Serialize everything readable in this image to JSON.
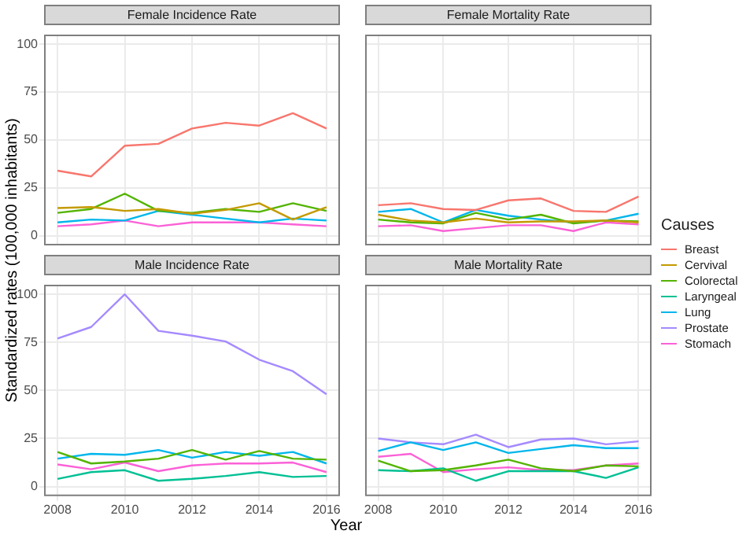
{
  "chart_data": [
    {
      "type": "line",
      "title": "Female Incidence Rate",
      "ylabel": "Standardized rates (100,000 inhabitants)",
      "legend": "right",
      "legend_title": "Causes",
      "x": [
        2008,
        2009,
        2010,
        2011,
        2012,
        2013,
        2014,
        2015,
        2016
      ],
      "xlim": [
        2007.6,
        2016.4
      ],
      "xticks": [
        2008,
        2010,
        2012,
        2014,
        2016
      ],
      "ylim": [
        -5,
        105
      ],
      "yticks": [
        0,
        25,
        50,
        75,
        100
      ],
      "grid": true,
      "tick_labels": "y",
      "series": [
        {
          "name": "Breast",
          "color": "#f8766d",
          "values": [
            34,
            31,
            47,
            48,
            56,
            59,
            57.5,
            64,
            56
          ]
        },
        {
          "name": "Cervival",
          "color": "#c49a00",
          "values": [
            14.5,
            15,
            13,
            14,
            11.5,
            13.5,
            17,
            8.5,
            15
          ]
        },
        {
          "name": "Colorectal",
          "color": "#53b400",
          "values": [
            12,
            14,
            22,
            13,
            12,
            14,
            12.5,
            17,
            13
          ]
        },
        {
          "name": "Laryngeal",
          "color": "#00c094",
          "values": [
            null,
            null,
            null,
            null,
            null,
            null,
            null,
            null,
            null
          ]
        },
        {
          "name": "Lung",
          "color": "#00b6eb",
          "values": [
            7,
            8.5,
            8,
            13,
            11,
            9,
            7,
            9,
            8
          ]
        },
        {
          "name": "Prostate",
          "color": "#a58aff",
          "values": [
            null,
            null,
            null,
            null,
            null,
            null,
            null,
            null,
            null
          ]
        },
        {
          "name": "Stomach",
          "color": "#fb61d7",
          "values": [
            5,
            6,
            8,
            5,
            7,
            7,
            7,
            6,
            5
          ]
        }
      ]
    },
    {
      "type": "line",
      "title": "Female Mortality Rate",
      "x": [
        2008,
        2009,
        2010,
        2011,
        2012,
        2013,
        2014,
        2015,
        2016
      ],
      "xlim": [
        2007.6,
        2016.4
      ],
      "xticks": [
        2008,
        2010,
        2012,
        2014,
        2016
      ],
      "ylim": [
        -5,
        105
      ],
      "yticks": [
        0,
        25,
        50,
        75,
        100
      ],
      "grid": true,
      "tick_labels": false,
      "series": [
        {
          "color": "#f8766d",
          "values": [
            16,
            17,
            14,
            13.5,
            18.5,
            19.5,
            13,
            12.5,
            20.5
          ]
        },
        {
          "color": "#c49a00",
          "values": [
            11,
            8,
            7,
            9,
            7,
            7.5,
            7.5,
            8,
            7
          ]
        },
        {
          "color": "#53b400",
          "values": [
            8.5,
            7,
            6.5,
            12,
            8.5,
            11,
            6.5,
            8,
            7.5
          ]
        },
        {
          "color": "#00b6eb",
          "values": [
            12.5,
            14,
            7,
            13.5,
            10.5,
            8.5,
            7,
            8,
            11.5
          ]
        },
        {
          "color": "#fb61d7",
          "values": [
            5,
            5.5,
            2.5,
            4,
            5.5,
            5.5,
            2.5,
            7,
            6
          ]
        }
      ]
    },
    {
      "type": "line",
      "title": "Male Incidence Rate",
      "xlabel": "Year",
      "x": [
        2008,
        2009,
        2010,
        2011,
        2012,
        2013,
        2014,
        2015,
        2016
      ],
      "xlim": [
        2007.6,
        2016.4
      ],
      "xticks": [
        2008,
        2010,
        2012,
        2014,
        2016
      ],
      "ylim": [
        -5,
        105
      ],
      "yticks": [
        0,
        25,
        50,
        75,
        100
      ],
      "grid": true,
      "series": [
        {
          "color": "#53b400",
          "values": [
            18,
            12,
            13,
            14.5,
            19,
            14,
            18.5,
            14.5,
            14
          ]
        },
        {
          "color": "#00c094",
          "values": [
            4,
            7.5,
            8.5,
            3,
            4,
            5.5,
            7.5,
            5,
            5.5
          ]
        },
        {
          "color": "#00b6eb",
          "values": [
            14.5,
            17,
            16.5,
            19,
            15,
            18,
            16,
            18,
            12
          ]
        },
        {
          "color": "#a58aff",
          "values": [
            77,
            83,
            100,
            81,
            78.5,
            75.5,
            66,
            60,
            48
          ]
        },
        {
          "color": "#fb61d7",
          "values": [
            11.5,
            9,
            12.5,
            8,
            11,
            12,
            12,
            12.5,
            7.5
          ]
        }
      ]
    },
    {
      "type": "line",
      "title": "Male Mortality Rate",
      "x": [
        2008,
        2009,
        2010,
        2011,
        2012,
        2013,
        2014,
        2015,
        2016
      ],
      "xlim": [
        2007.6,
        2016.4
      ],
      "xticks": [
        2008,
        2010,
        2012,
        2014,
        2016
      ],
      "ylim": [
        -5,
        105
      ],
      "yticks": [
        0,
        25,
        50,
        75,
        100
      ],
      "grid": true,
      "tick_labels": "x",
      "series": [
        {
          "color": "#53b400",
          "values": [
            13.5,
            8,
            8.5,
            11,
            14,
            9.5,
            8,
            11,
            10.5
          ]
        },
        {
          "color": "#00c094",
          "values": [
            8.5,
            8,
            9.5,
            3,
            8,
            8,
            8,
            4.5,
            10
          ]
        },
        {
          "color": "#00b6eb",
          "values": [
            18.5,
            23,
            19,
            23,
            17.5,
            19.5,
            21.5,
            20,
            20
          ]
        },
        {
          "color": "#a58aff",
          "values": [
            25,
            23,
            22,
            27,
            20.5,
            24.5,
            25,
            22,
            23.5
          ]
        },
        {
          "color": "#fb61d7",
          "values": [
            15.5,
            17,
            7.5,
            9,
            10,
            8.5,
            8.5,
            11,
            12
          ]
        }
      ]
    }
  ]
}
